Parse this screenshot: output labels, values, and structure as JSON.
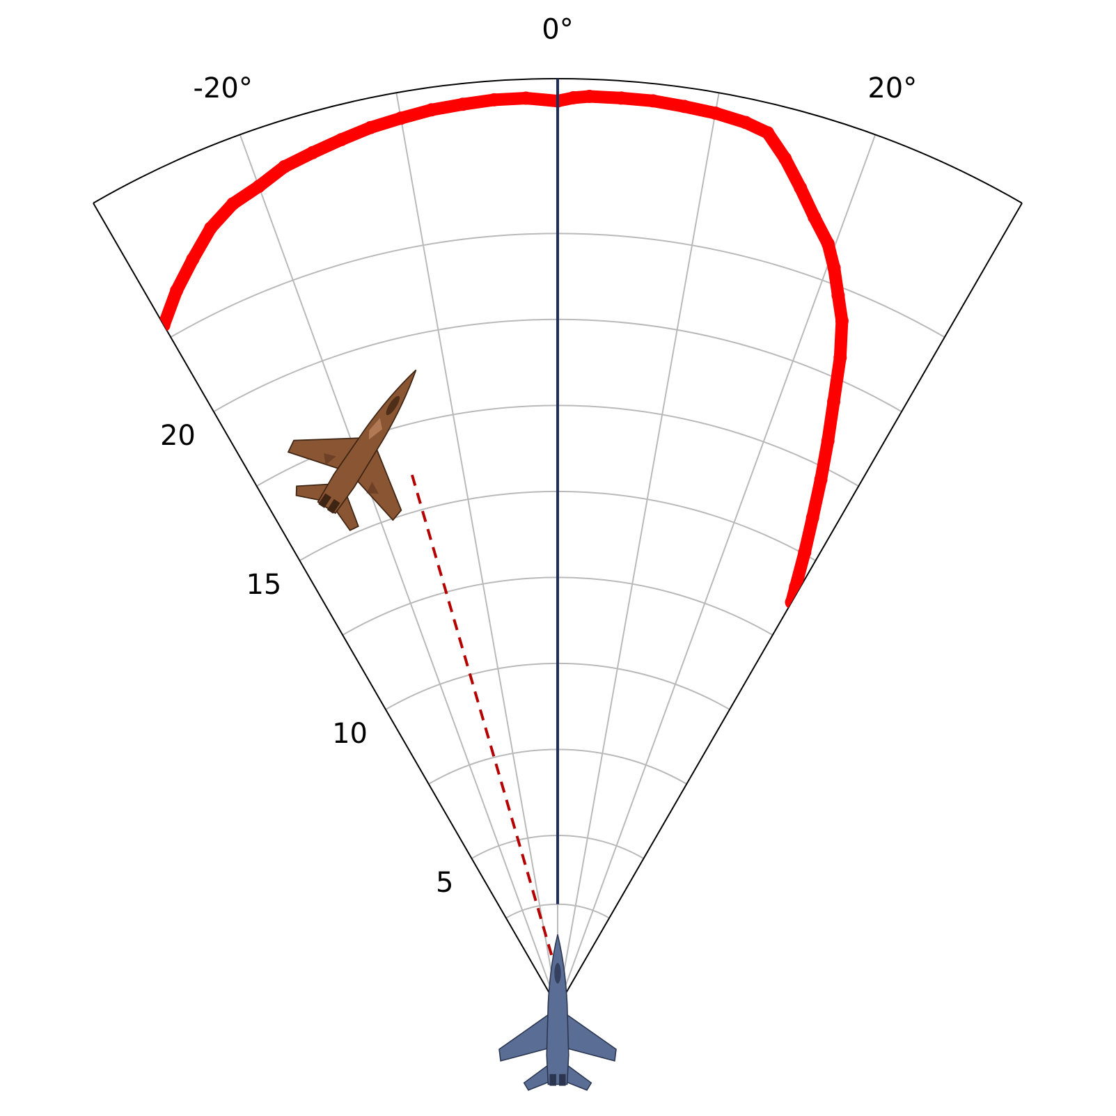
{
  "chart_data": {
    "type": "polar-sector",
    "theta_range_deg": [
      -30,
      30
    ],
    "theta_zero": "top",
    "r_range": [
      0,
      27
    ],
    "grid": true,
    "angle_ticks": [
      {
        "value": -30,
        "label": ""
      },
      {
        "value": -20,
        "label": "-20°"
      },
      {
        "value": -10,
        "label": ""
      },
      {
        "value": 0,
        "label": "0°"
      },
      {
        "value": 10,
        "label": ""
      },
      {
        "value": 20,
        "label": "20°"
      },
      {
        "value": 30,
        "label": ""
      }
    ],
    "radial_ticks": [
      {
        "value": 3,
        "label": ""
      },
      {
        "value": 5,
        "label": "5"
      },
      {
        "value": 7.5,
        "label": ""
      },
      {
        "value": 10,
        "label": "10"
      },
      {
        "value": 12.5,
        "label": ""
      },
      {
        "value": 15,
        "label": "15"
      },
      {
        "value": 17.5,
        "label": ""
      },
      {
        "value": 20,
        "label": "20"
      },
      {
        "value": 22.5,
        "label": ""
      }
    ],
    "heading_line": {
      "theta": 0,
      "r_start": 3.0,
      "r_end": 27,
      "color": "#1f2d5a"
    },
    "los_line": {
      "theta_start": -1.5,
      "r_start": 1.0,
      "theta_end": -15.3,
      "r_end": 16.2,
      "color": "#b50000",
      "style": "dashed"
    },
    "boundary_series": {
      "color": "#ff0000",
      "points": [
        {
          "theta": -30,
          "r": 22.9
        },
        {
          "theta": -28,
          "r": 23.6
        },
        {
          "theta": -26,
          "r": 24.2
        },
        {
          "theta": -24,
          "r": 24.8
        },
        {
          "theta": -22,
          "r": 25.2
        },
        {
          "theta": -20,
          "r": 25.4
        },
        {
          "theta": -18,
          "r": 25.7
        },
        {
          "theta": -16,
          "r": 25.85
        },
        {
          "theta": -14,
          "r": 26.0
        },
        {
          "theta": -12,
          "r": 26.15
        },
        {
          "theta": -10,
          "r": 26.25
        },
        {
          "theta": -8,
          "r": 26.35
        },
        {
          "theta": -6,
          "r": 26.4
        },
        {
          "theta": -4,
          "r": 26.45
        },
        {
          "theta": -2,
          "r": 26.45
        },
        {
          "theta": 0,
          "r": 26.35
        },
        {
          "theta": 1,
          "r": 26.45
        },
        {
          "theta": 2,
          "r": 26.5
        },
        {
          "theta": 4,
          "r": 26.5
        },
        {
          "theta": 6,
          "r": 26.5
        },
        {
          "theta": 8,
          "r": 26.45
        },
        {
          "theta": 10,
          "r": 26.4
        },
        {
          "theta": 12,
          "r": 26.3
        },
        {
          "theta": 13.5,
          "r": 26.15
        },
        {
          "theta": 15,
          "r": 25.55
        },
        {
          "theta": 16.5,
          "r": 24.85
        },
        {
          "theta": 18,
          "r": 24.15
        },
        {
          "theta": 19.5,
          "r": 23.55
        },
        {
          "theta": 20.5,
          "r": 22.95
        },
        {
          "theta": 21.5,
          "r": 22.25
        },
        {
          "theta": 22.5,
          "r": 21.6
        },
        {
          "theta": 23.5,
          "r": 20.6
        },
        {
          "theta": 24.5,
          "r": 19.35
        },
        {
          "theta": 25.5,
          "r": 18.25
        },
        {
          "theta": 26.5,
          "r": 17.15
        },
        {
          "theta": 27.5,
          "r": 16.05
        },
        {
          "theta": 28.5,
          "r": 15.05
        },
        {
          "theta": 29.5,
          "r": 14.05
        },
        {
          "theta": 30,
          "r": 13.6
        }
      ]
    },
    "markers": [
      {
        "name": "ownship",
        "theta": 0,
        "r": 0,
        "color": "#5a6d94"
      },
      {
        "name": "target",
        "theta": -17.5,
        "r": 17.7,
        "heading_deg": 33,
        "color": "#8a5533"
      }
    ]
  }
}
